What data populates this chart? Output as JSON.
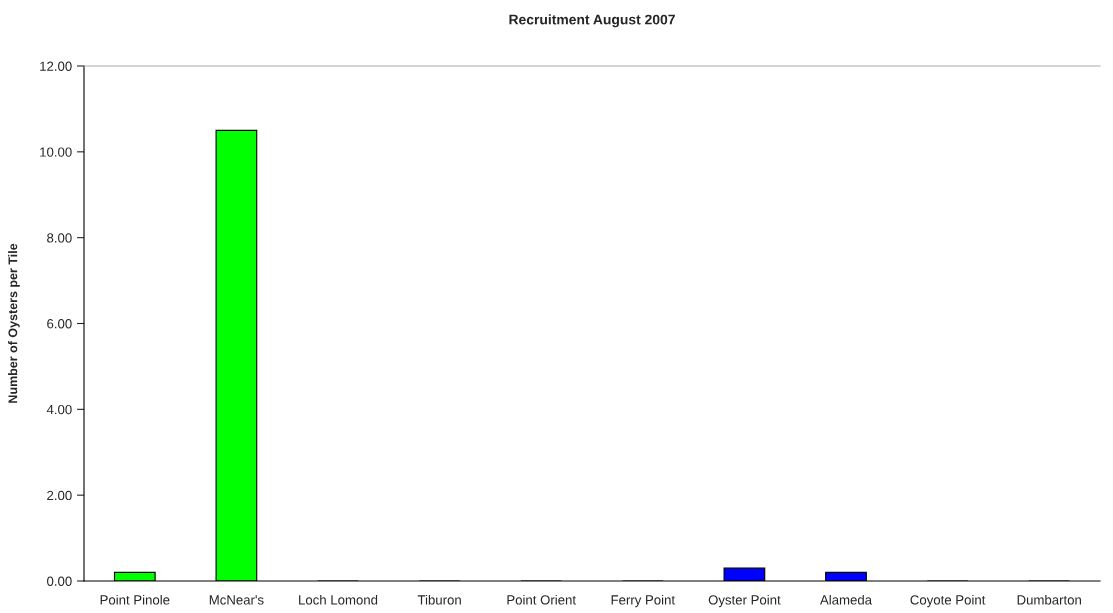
{
  "chart_data": {
    "type": "bar",
    "title": "Recruitment August 2007",
    "ylabel": "Number of Oysters per Tile",
    "categories": [
      "Point Pinole",
      "McNear's",
      "Loch Lomond",
      "Tiburon",
      "Point Orient",
      "Ferry Point",
      "Oyster Point",
      "Alameda",
      "Coyote Point",
      "Dumbarton"
    ],
    "values": [
      0.2,
      10.5,
      0,
      0,
      0,
      0,
      0.3,
      0.2,
      0,
      0
    ],
    "colors": [
      "#00ff00",
      "#00ff00",
      "#00ff00",
      "#00ff00",
      "#00ff00",
      "#00ff00",
      "#0000ff",
      "#0000ff",
      "#0000ff",
      "#0000ff"
    ],
    "ylim": [
      0,
      12
    ],
    "yticks": [
      {
        "value": 0,
        "label": "0.00"
      },
      {
        "value": 2,
        "label": "2.00"
      },
      {
        "value": 4,
        "label": "4.00"
      },
      {
        "value": 6,
        "label": "6.00"
      },
      {
        "value": 8,
        "label": "8.00"
      },
      {
        "value": 10,
        "label": "10.00"
      },
      {
        "value": 12,
        "label": "12.00"
      }
    ],
    "grid": false,
    "legend": false
  }
}
